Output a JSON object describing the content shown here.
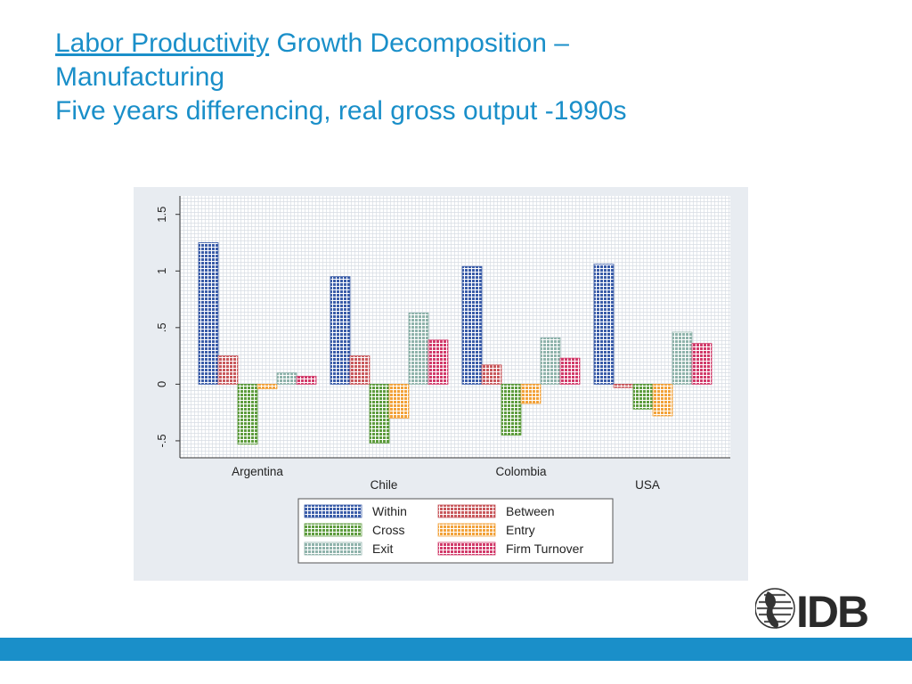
{
  "slide": {
    "title_link": "Labor Productivity",
    "title_rest": " Growth Decomposition –",
    "title_line2": "Manufacturing",
    "subtitle": "Five years differencing, real gross output -1990s"
  },
  "logo": {
    "text": "IDB",
    "icon": "globe-icon"
  },
  "colors": {
    "accent": "#1a8fc9",
    "panel": "#e8ecf1"
  },
  "chart_data": {
    "type": "bar",
    "categories": [
      "Argentina",
      "Chile",
      "Colombia",
      "USA"
    ],
    "ylim": [
      -0.65,
      1.6
    ],
    "yticks": [
      {
        "value": -0.5,
        "label": "-.5"
      },
      {
        "value": 0,
        "label": "0"
      },
      {
        "value": 0.5,
        "label": ".5"
      },
      {
        "value": 1,
        "label": "1"
      },
      {
        "value": 1.5,
        "label": "1.5"
      }
    ],
    "grid": true,
    "legend_position": "bottom",
    "series": [
      {
        "name": "Within",
        "color": "#3a5ca8",
        "values": [
          1.25,
          0.95,
          1.04,
          1.06
        ]
      },
      {
        "name": "Between",
        "color": "#c8585c",
        "values": [
          0.25,
          0.25,
          0.17,
          -0.03
        ]
      },
      {
        "name": "Cross",
        "color": "#5e9c3e",
        "values": [
          -0.53,
          -0.52,
          -0.45,
          -0.22
        ]
      },
      {
        "name": "Entry",
        "color": "#f2a23a",
        "values": [
          -0.04,
          -0.3,
          -0.17,
          -0.28
        ]
      },
      {
        "name": "Exit",
        "color": "#8fb3ab",
        "values": [
          0.1,
          0.63,
          0.41,
          0.46
        ]
      },
      {
        "name": "Firm Turnover",
        "color": "#d13a6a",
        "values": [
          0.07,
          0.39,
          0.23,
          0.36
        ]
      }
    ]
  }
}
